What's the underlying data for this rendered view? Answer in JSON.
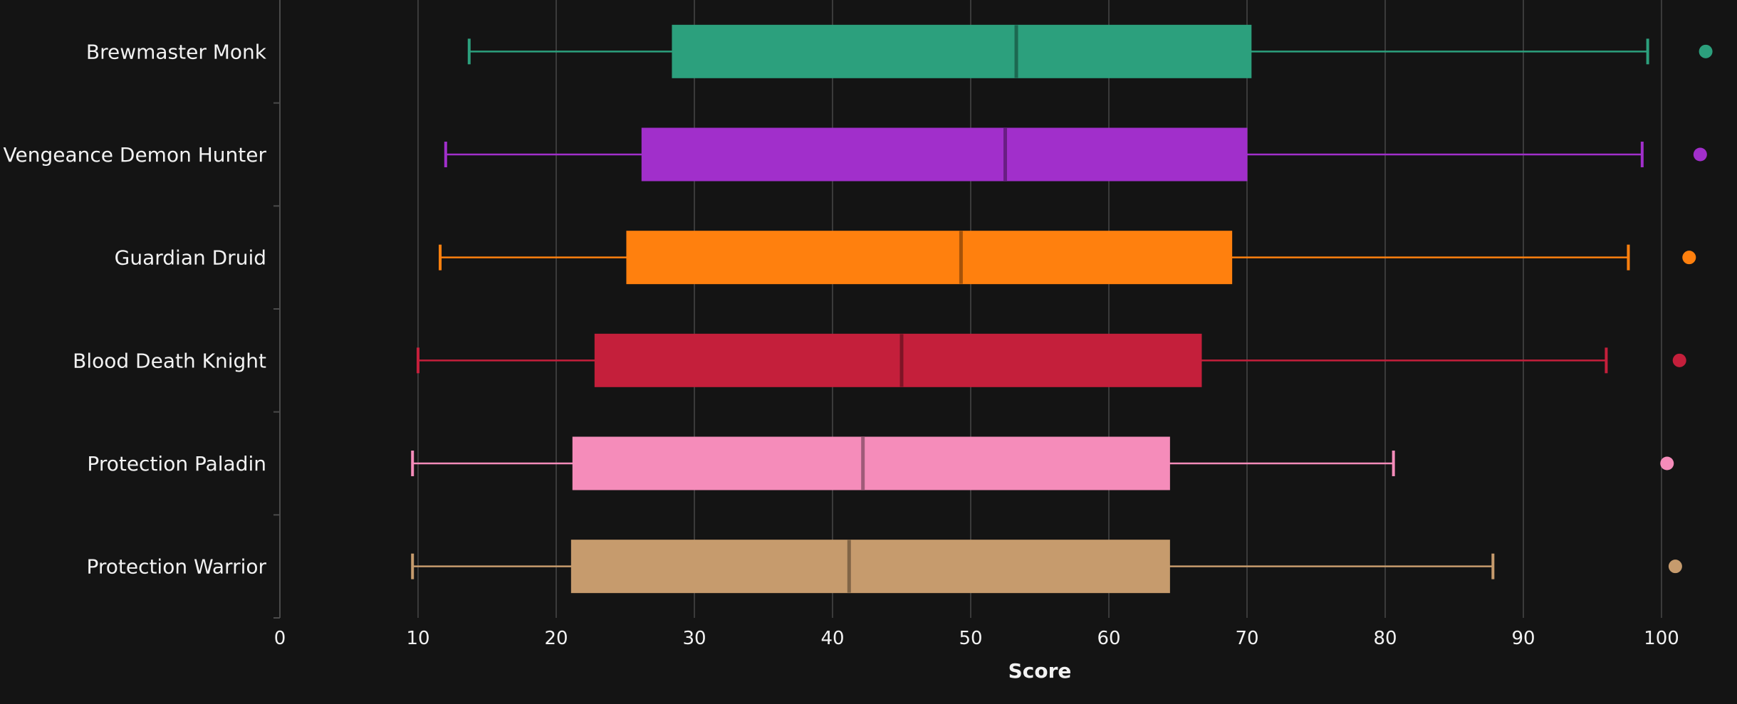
{
  "chart_data": {
    "type": "box",
    "orientation": "horizontal",
    "xlabel": "Score",
    "ylabel": "",
    "xlim": [
      0,
      103.5
    ],
    "xticks": [
      0,
      10,
      20,
      30,
      40,
      50,
      60,
      70,
      80,
      90,
      100
    ],
    "grid": true,
    "series": [
      {
        "name": "Brewmaster Monk",
        "min": 13.7,
        "q1": 28.4,
        "median": 53.3,
        "q3": 70.3,
        "max": 99.0,
        "outliers": [
          103.2
        ],
        "color": "#2ca07d"
      },
      {
        "name": "Vengeance Demon Hunter",
        "min": 12.0,
        "q1": 26.2,
        "median": 52.5,
        "q3": 70.0,
        "max": 98.6,
        "outliers": [
          102.8
        ],
        "color": "#a12fcb"
      },
      {
        "name": "Guardian Druid",
        "min": 11.6,
        "q1": 25.1,
        "median": 49.3,
        "q3": 68.9,
        "max": 97.6,
        "outliers": [
          102.0
        ],
        "color": "#ff800e"
      },
      {
        "name": "Blood Death Knight",
        "min": 10.0,
        "q1": 22.8,
        "median": 45.0,
        "q3": 66.7,
        "max": 96.0,
        "outliers": [
          101.3
        ],
        "color": "#c41f3b"
      },
      {
        "name": "Protection Paladin",
        "min": 9.6,
        "q1": 21.2,
        "median": 42.2,
        "q3": 64.4,
        "max": 80.6,
        "outliers": [
          100.4
        ],
        "color": "#f58cba"
      },
      {
        "name": "Protection Warrior",
        "min": 9.6,
        "q1": 21.1,
        "median": 41.2,
        "q3": 64.4,
        "max": 87.8,
        "outliers": [
          101.0
        ],
        "color": "#c69b6d"
      }
    ]
  }
}
